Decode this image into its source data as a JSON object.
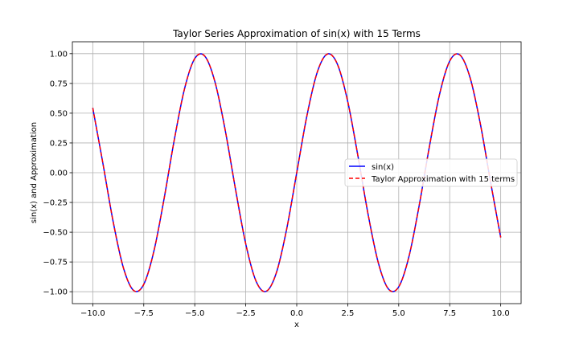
{
  "chart_data": {
    "type": "line",
    "title": "Taylor Series Approximation of sin(x) with 15 Terms",
    "xlabel": "x",
    "ylabel": "sin(x) and Approximation",
    "xlim": [
      -11,
      11
    ],
    "ylim": [
      -1.1,
      1.1
    ],
    "xticks": [
      "−10.0",
      "−7.5",
      "−5.0",
      "−2.5",
      "0.0",
      "2.5",
      "5.0",
      "7.5",
      "10.0"
    ],
    "yticks": [
      "−1.00",
      "−0.75",
      "−0.50",
      "−0.25",
      "0.00",
      "0.25",
      "0.50",
      "0.75",
      "1.00"
    ],
    "grid": true,
    "legend_position": "center-right",
    "x": [
      -10.0,
      -9.5,
      -9.0,
      -8.5,
      -8.0,
      -7.5,
      -7.0,
      -6.5,
      -6.0,
      -5.5,
      -5.0,
      -4.5,
      -4.0,
      -3.5,
      -3.0,
      -2.5,
      -2.0,
      -1.5,
      -1.0,
      -0.5,
      0.0,
      0.5,
      1.0,
      1.5,
      2.0,
      2.5,
      3.0,
      3.5,
      4.0,
      4.5,
      5.0,
      5.5,
      6.0,
      6.5,
      7.0,
      7.5,
      8.0,
      8.5,
      9.0,
      9.5,
      10.0
    ],
    "series": [
      {
        "name": "sin(x)",
        "color": "#0000ff",
        "style": "solid",
        "values": [
          0.544,
          0.075,
          -0.412,
          -0.798,
          -0.989,
          -0.938,
          -0.657,
          -0.215,
          0.279,
          0.706,
          0.959,
          0.978,
          0.757,
          0.351,
          -0.141,
          -0.598,
          -0.909,
          -0.997,
          -0.841,
          -0.479,
          0.0,
          0.479,
          0.841,
          0.997,
          0.909,
          0.598,
          0.141,
          -0.351,
          -0.757,
          -0.978,
          -0.959,
          -0.706,
          -0.279,
          0.215,
          0.657,
          0.938,
          0.989,
          0.798,
          0.412,
          -0.075,
          -0.544
        ]
      },
      {
        "name": "Taylor Approximation with 15 terms",
        "color": "#ff0000",
        "style": "dashed",
        "values": [
          0.544,
          0.075,
          -0.412,
          -0.798,
          -0.989,
          -0.938,
          -0.657,
          -0.215,
          0.279,
          0.706,
          0.959,
          0.978,
          0.757,
          0.351,
          -0.141,
          -0.598,
          -0.909,
          -0.997,
          -0.841,
          -0.479,
          0.0,
          0.479,
          0.841,
          0.997,
          0.909,
          0.598,
          0.141,
          -0.351,
          -0.757,
          -0.978,
          -0.959,
          -0.706,
          -0.279,
          0.215,
          0.657,
          0.938,
          0.989,
          0.798,
          0.412,
          -0.075,
          -0.544
        ]
      }
    ]
  }
}
